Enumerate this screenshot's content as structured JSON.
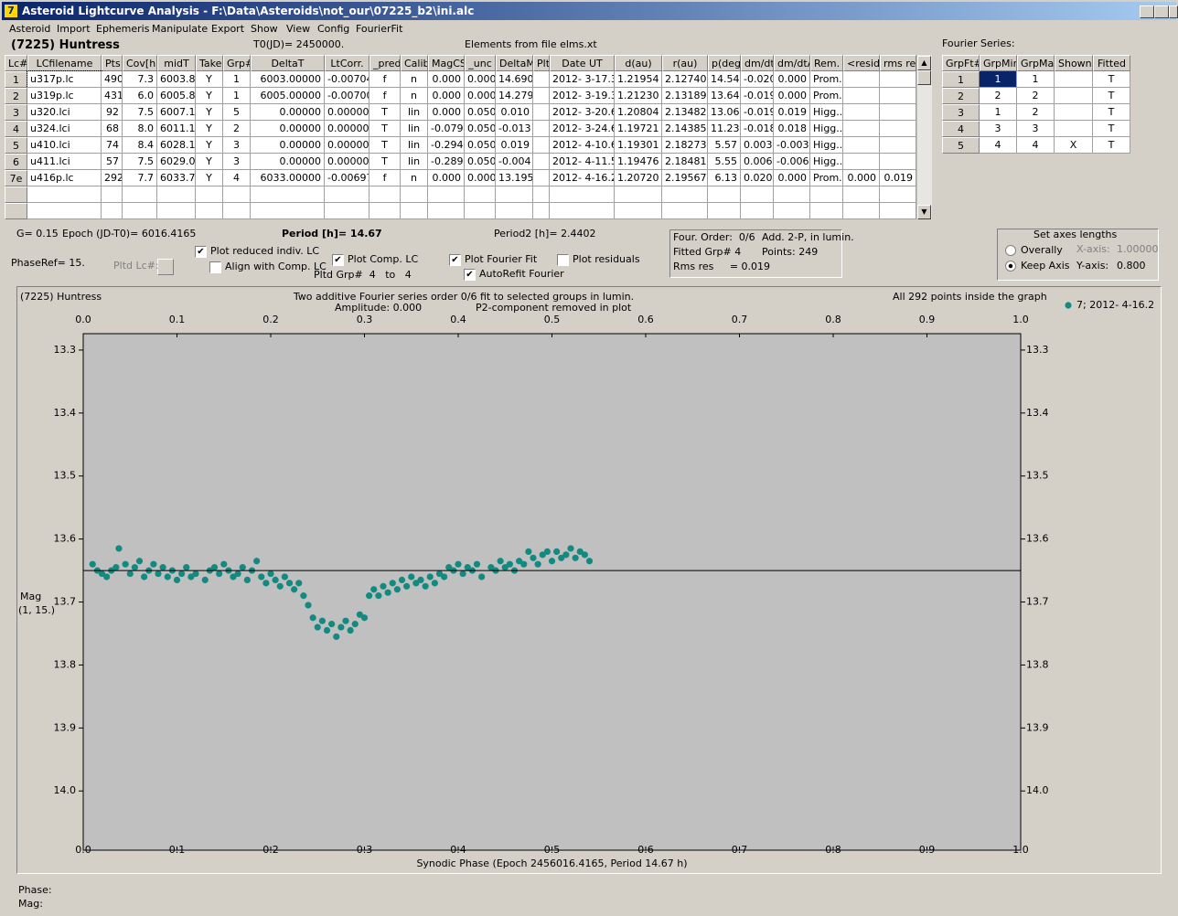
{
  "window": {
    "title": "Asteroid Lightcurve Analysis - F:\\Data\\Asteroids\\not_our\\07225_b2\\ini.alc"
  },
  "menu": [
    "Asteroid",
    "Import",
    "Ephemeris",
    "Manipulate",
    "Export",
    "Show",
    "View",
    "Config",
    "FourierFit"
  ],
  "header": {
    "object": "(7225) Huntress",
    "t0": "T0(JD)= 2450000.",
    "elements": "Elements from file elms.xt",
    "fourier_label": "Fourier Series:"
  },
  "lc_table": {
    "columns": [
      "Lc#",
      "LCfilename",
      "Pts",
      "Cov[h]",
      "midT",
      "Take",
      "Grp#",
      "DeltaT",
      "LtCorr.",
      "_pred.",
      "Calib.",
      "MagCS",
      "_unc",
      "DeltaM",
      "Plt",
      "Date UT",
      "d(au)",
      "r(au)",
      "p(deg)",
      "dm/dt",
      "dm/dtA",
      "Rem.",
      "<resid>",
      "rms res"
    ],
    "rows": [
      [
        "1",
        "u317p.lc",
        "490",
        "7.3",
        "6003.8",
        "Y",
        "1",
        "6003.00000",
        "-0.00704",
        "f",
        "n",
        "0.000",
        "0.000",
        "14.690",
        null,
        "2012- 3-17.3",
        "1.21954",
        "2.12740",
        "14.54",
        "-0.020",
        "0.000",
        "Prom...",
        null,
        null
      ],
      [
        "2",
        "u319p.lc",
        "431",
        "6.0",
        "6005.8",
        "Y",
        "1",
        "6005.00000",
        "-0.00700",
        "f",
        "n",
        "0.000",
        "0.000",
        "14.279",
        null,
        "2012- 3-19.3",
        "1.21230",
        "2.13189",
        "13.64",
        "-0.019",
        "0.000",
        "Prom...",
        null,
        null
      ],
      [
        "3",
        "u320.lci",
        "92",
        "7.5",
        "6007.1",
        "Y",
        "5",
        "0.00000",
        "0.00000",
        "T",
        "lin",
        "0.000",
        "0.050",
        "0.010",
        null,
        "2012- 3-20.6",
        "1.20804",
        "2.13482",
        "13.06",
        "-0.019",
        "0.019",
        "Higg...",
        null,
        null
      ],
      [
        "4",
        "u324.lci",
        "68",
        "8.0",
        "6011.1",
        "Y",
        "2",
        "0.00000",
        "0.00000",
        "T",
        "lin",
        "-0.079",
        "0.050",
        "-0.013",
        null,
        "2012- 3-24.6",
        "1.19721",
        "2.14385",
        "11.23",
        "-0.018",
        "0.018",
        "Higg...",
        null,
        null
      ],
      [
        "5",
        "u410.lci",
        "74",
        "8.4",
        "6028.1",
        "Y",
        "3",
        "0.00000",
        "0.00000",
        "T",
        "lin",
        "-0.294",
        "0.050",
        "0.019",
        null,
        "2012- 4-10.6",
        "1.19301",
        "2.18273",
        "5.57",
        "0.003",
        "-0.003",
        "Higg...",
        null,
        null
      ],
      [
        "6",
        "u411.lci",
        "57",
        "7.5",
        "6029.0",
        "Y",
        "3",
        "0.00000",
        "0.00000",
        "T",
        "lin",
        "-0.289",
        "0.050",
        "-0.004",
        null,
        "2012- 4-11.5",
        "1.19476",
        "2.18481",
        "5.55",
        "0.006",
        "-0.006",
        "Higg...",
        null,
        null
      ],
      [
        "7e",
        "u416p.lc",
        "292",
        "7.7",
        "6033.7",
        "Y",
        "4",
        "6033.00000",
        "-0.00697",
        "f",
        "n",
        "0.000",
        "0.000",
        "13.195",
        null,
        "2012- 4-16.2",
        "1.20720",
        "2.19567",
        "6.13",
        "0.020",
        "0.000",
        "Prom...",
        "0.000",
        "0.019"
      ]
    ]
  },
  "fourier_table": {
    "columns": [
      "GrpFt#",
      "GrpMin",
      "GrpMax",
      "Shown",
      "Fitted"
    ],
    "rows": [
      [
        "1",
        "1",
        "1",
        null,
        "T"
      ],
      [
        "2",
        "2",
        "2",
        null,
        "T"
      ],
      [
        "3",
        "1",
        "2",
        null,
        "T"
      ],
      [
        "4",
        "3",
        "3",
        null,
        "T"
      ],
      [
        "5",
        "4",
        "4",
        "X",
        "T"
      ]
    ]
  },
  "info": {
    "g": "G= 0.15",
    "epoch": "Epoch (JD-T0)= 6016.4165",
    "period": "Period [h]= 14.67",
    "period2": "Period2 [h]= 2.4402",
    "phaseref": "PhaseRef= 15.",
    "pltd_lc": "Pltd Lc#:",
    "pltd_grp": "Pltd Grp#  4   to   4"
  },
  "checkboxes": [
    {
      "label": "Plot reduced indiv. LC",
      "checked": true
    },
    {
      "label": "Align with Comp. LC",
      "checked": false
    },
    {
      "label": "Plot Comp. LC",
      "checked": true
    },
    {
      "label": "Plot Fourier Fit",
      "checked": true
    },
    {
      "label": "AutoRefit Fourier",
      "checked": true
    },
    {
      "label": "Plot residuals",
      "checked": false
    }
  ],
  "fit_box": {
    "order": "Four. Order:  0/6",
    "add": "Add. 2-P, in lumin.",
    "fitted": "Fitted Grp# 4",
    "points": "Points: 249",
    "rms": "Rms res     = 0.019"
  },
  "axes_box": {
    "title": "Set axes lengths",
    "options": [
      {
        "label": "Overally",
        "selected": false
      },
      {
        "label": "Keep Axis",
        "selected": true
      }
    ],
    "x_label": "X-axis:",
    "x_value": "1.00000",
    "y_label": "Y-axis:",
    "y_value": "0.800"
  },
  "status": {
    "phase": "Phase:",
    "mag": "Mag:"
  },
  "chart_data": {
    "type": "scatter",
    "title": "(7225) Huntress",
    "subtitle": "Two additive Fourier series order 0/6 fit to selected groups in lumin.",
    "amplitude": "Amplitude: 0.000",
    "note": "P2-component removed in plot",
    "points_note": "All 292 points inside the graph",
    "x_label": "Synodic Phase (Epoch 2456016.4165, Period 14.67 h)",
    "y_label": "Mag",
    "y_label2": "(1, 15.)",
    "xlim": [
      0,
      1
    ],
    "ylim": [
      13.274,
      14.094
    ],
    "y_inverted": true,
    "grid": false,
    "xticks": [
      {
        "value": 0,
        "label": "0.0"
      },
      0.1,
      0.2,
      0.3,
      0.4,
      0.5,
      0.6,
      0.7,
      0.8,
      0.9,
      {
        "value": 1,
        "label": "1.0"
      }
    ],
    "yticks": [
      13.3,
      13.4,
      13.5,
      13.6,
      13.7,
      13.8,
      13.9,
      {
        "value": 14,
        "label": "14.0"
      }
    ],
    "fit_level": 13.65,
    "fit_color": "#000000",
    "x": [
      0.01,
      0.015,
      0.02,
      0.025,
      0.03,
      0.035,
      0.038,
      0.045,
      0.05,
      0.055,
      0.06,
      0.065,
      0.07,
      0.075,
      0.08,
      0.085,
      0.09,
      0.095,
      0.1,
      0.105,
      0.11,
      0.115,
      0.12,
      0.13,
      0.135,
      0.14,
      0.145,
      0.15,
      0.155,
      0.16,
      0.165,
      0.17,
      0.175,
      0.18,
      0.185,
      0.19,
      0.195,
      0.2,
      0.205,
      0.21,
      0.215,
      0.22,
      0.225,
      0.23,
      0.235,
      0.24,
      0.245,
      0.25,
      0.255,
      0.26,
      0.265,
      0.27,
      0.275,
      0.28,
      0.285,
      0.29,
      0.295,
      0.3,
      0.305,
      0.31,
      0.315,
      0.32,
      0.325,
      0.33,
      0.335,
      0.34,
      0.345,
      0.35,
      0.355,
      0.36,
      0.365,
      0.37,
      0.375,
      0.38,
      0.385,
      0.39,
      0.395,
      0.4,
      0.405,
      0.41,
      0.415,
      0.42,
      0.425,
      0.435,
      0.44,
      0.445,
      0.45,
      0.455,
      0.46,
      0.465,
      0.47,
      0.475,
      0.48,
      0.485,
      0.49,
      0.495,
      0.5,
      0.505,
      0.51,
      0.515,
      0.52,
      0.525,
      0.53,
      0.535,
      0.54
    ],
    "series": [
      {
        "name": "7; 2012- 4-16.2",
        "color": "#138a80",
        "values": [
          13.64,
          13.65,
          13.655,
          13.66,
          13.65,
          13.645,
          13.615,
          13.64,
          13.655,
          13.645,
          13.635,
          13.66,
          13.65,
          13.64,
          13.655,
          13.645,
          13.66,
          13.65,
          13.665,
          13.655,
          13.645,
          13.66,
          13.655,
          13.665,
          13.65,
          13.645,
          13.655,
          13.64,
          13.65,
          13.66,
          13.655,
          13.645,
          13.665,
          13.65,
          13.635,
          13.66,
          13.67,
          13.655,
          13.665,
          13.675,
          13.66,
          13.67,
          13.68,
          13.67,
          13.69,
          13.705,
          13.725,
          13.74,
          13.73,
          13.745,
          13.735,
          13.755,
          13.74,
          13.73,
          13.745,
          13.735,
          13.72,
          13.725,
          13.69,
          13.68,
          13.69,
          13.675,
          13.685,
          13.67,
          13.68,
          13.665,
          13.675,
          13.66,
          13.67,
          13.665,
          13.675,
          13.66,
          13.67,
          13.655,
          13.66,
          13.645,
          13.65,
          13.64,
          13.655,
          13.645,
          13.65,
          13.64,
          13.66,
          13.645,
          13.65,
          13.635,
          13.645,
          13.64,
          13.65,
          13.635,
          13.64,
          13.62,
          13.63,
          13.64,
          13.625,
          13.62,
          13.635,
          13.62,
          13.63,
          13.625,
          13.615,
          13.63,
          13.62,
          13.625,
          13.635
        ]
      }
    ]
  }
}
